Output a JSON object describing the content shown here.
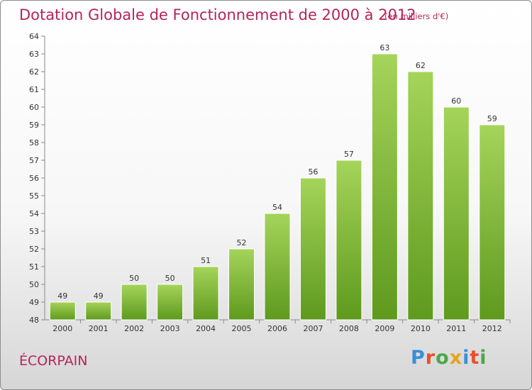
{
  "title": "Dotation Globale de Fonctionnement de 2000 à 2012",
  "unit": "(en milliers d'€)",
  "commune": "ÉCORPAIN",
  "logo": {
    "letters": [
      "P",
      "r",
      "o",
      "x",
      "i",
      "t",
      "i"
    ],
    "colors": [
      "#3a8fd6",
      "#e8502a",
      "#4aa84a",
      "#e8a21f",
      "#3a8fd6",
      "#e8502a",
      "#4aa84a"
    ]
  },
  "colors": {
    "text_accent": "#b5245a",
    "bar_top": "#a5d45a",
    "bar_bottom": "#5e9a1d"
  },
  "chart_data": {
    "type": "bar",
    "categories": [
      "2000",
      "2001",
      "2002",
      "2003",
      "2004",
      "2005",
      "2006",
      "2007",
      "2008",
      "2009",
      "2010",
      "2011",
      "2012"
    ],
    "values": [
      49,
      49,
      50,
      50,
      51,
      52,
      54,
      56,
      57,
      63,
      62,
      60,
      59
    ],
    "title": "Dotation Globale de Fonctionnement de 2000 à 2012",
    "xlabel": "",
    "ylabel": "",
    "ylim": [
      48,
      64
    ],
    "yticks": [
      48,
      49,
      50,
      51,
      52,
      53,
      54,
      55,
      56,
      57,
      58,
      59,
      60,
      61,
      62,
      63,
      64
    ],
    "grid": false,
    "legend": "none"
  }
}
